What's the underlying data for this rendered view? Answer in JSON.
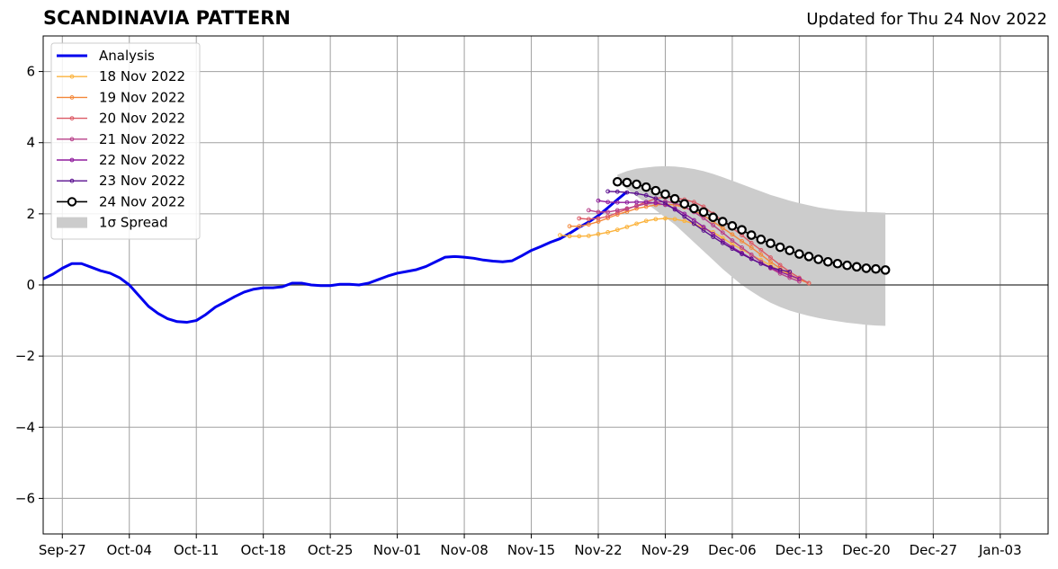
{
  "chart_data": {
    "type": "line",
    "title": "SCANDINAVIA PATTERN",
    "subtitle": "Updated for Thu 24 Nov 2022",
    "xlabel": "",
    "ylabel": "",
    "ylim": [
      -7,
      7
    ],
    "yticks": [
      -6,
      -4,
      -2,
      0,
      2,
      4,
      6
    ],
    "ytick_labels": [
      "−6",
      "−4",
      "−2",
      "0",
      "2",
      "4",
      "6"
    ],
    "xlim": [
      "2022-09-25",
      "2023-01-08"
    ],
    "xticks": [
      "2022-09-27",
      "2022-10-04",
      "2022-10-11",
      "2022-10-18",
      "2022-10-25",
      "2022-11-01",
      "2022-11-08",
      "2022-11-15",
      "2022-11-22",
      "2022-11-29",
      "2022-12-06",
      "2022-12-13",
      "2022-12-20",
      "2022-12-27",
      "2023-01-03"
    ],
    "xtick_labels": [
      "Sep-27",
      "Oct-04",
      "Oct-11",
      "Oct-18",
      "Oct-25",
      "Nov-01",
      "Nov-08",
      "Nov-15",
      "Nov-22",
      "Nov-29",
      "Dec-06",
      "Dec-13",
      "Dec-20",
      "Dec-27",
      "Jan-03"
    ],
    "grid": true,
    "legend_position": "top-left",
    "analysis": {
      "name": "Analysis",
      "color": "#0000ee",
      "start": "2022-09-25",
      "values": [
        0.17,
        0.3,
        0.47,
        0.6,
        0.6,
        0.5,
        0.4,
        0.33,
        0.2,
        0.0,
        -0.3,
        -0.6,
        -0.8,
        -0.95,
        -1.03,
        -1.05,
        -1.0,
        -0.83,
        -0.62,
        -0.48,
        -0.33,
        -0.2,
        -0.12,
        -0.08,
        -0.08,
        -0.05,
        0.05,
        0.05,
        0.0,
        -0.02,
        -0.02,
        0.02,
        0.02,
        0.0,
        0.05,
        0.15,
        0.25,
        0.33,
        0.38,
        0.43,
        0.52,
        0.65,
        0.78,
        0.8,
        0.78,
        0.75,
        0.7,
        0.67,
        0.65,
        0.68,
        0.82,
        0.97,
        1.08,
        1.2,
        1.3,
        1.45,
        1.62,
        1.77,
        1.95,
        2.17,
        2.4,
        2.62
      ]
    },
    "forecasts": [
      {
        "name": "18 Nov 2022",
        "color": "#fbb33d",
        "start": "2022-11-18",
        "values": [
          1.4,
          1.37,
          1.37,
          1.38,
          1.43,
          1.48,
          1.55,
          1.63,
          1.72,
          1.8,
          1.85,
          1.87,
          1.85,
          1.8,
          1.72,
          1.6,
          1.48,
          1.32,
          1.15,
          1.0,
          0.85,
          0.7,
          0.55,
          0.4,
          0.27,
          0.15,
          0.05
        ]
      },
      {
        "name": "19 Nov 2022",
        "color": "#f3883a",
        "start": "2022-11-19",
        "values": [
          1.65,
          1.65,
          1.7,
          1.78,
          1.88,
          1.98,
          2.06,
          2.15,
          2.2,
          2.25,
          2.27,
          2.25,
          2.18,
          2.08,
          1.95,
          1.78,
          1.6,
          1.42,
          1.23,
          1.05,
          0.85,
          0.65,
          0.47,
          0.3,
          0.15,
          0.05
        ]
      },
      {
        "name": "20 Nov 2022",
        "color": "#dc5a65",
        "start": "2022-11-20",
        "values": [
          1.87,
          1.85,
          1.87,
          1.93,
          2.03,
          2.13,
          2.23,
          2.33,
          2.43,
          2.47,
          2.45,
          2.4,
          2.33,
          2.2,
          2.0,
          1.8,
          1.6,
          1.4,
          1.18,
          0.98,
          0.77,
          0.56,
          0.37,
          0.2,
          0.05
        ]
      },
      {
        "name": "21 Nov 2022",
        "color": "#b8408a",
        "start": "2022-11-21",
        "values": [
          2.1,
          2.05,
          2.05,
          2.1,
          2.15,
          2.22,
          2.28,
          2.32,
          2.35,
          2.3,
          2.2,
          2.05,
          1.88,
          1.68,
          1.47,
          1.25,
          1.05,
          0.85,
          0.65,
          0.47,
          0.32,
          0.2,
          0.1
        ]
      },
      {
        "name": "22 Nov 2022",
        "color": "#901d9d",
        "start": "2022-11-22",
        "values": [
          2.37,
          2.33,
          2.32,
          2.32,
          2.33,
          2.33,
          2.3,
          2.25,
          2.15,
          2.0,
          1.82,
          1.63,
          1.43,
          1.24,
          1.06,
          0.9,
          0.74,
          0.6,
          0.48,
          0.37,
          0.27,
          0.17
        ]
      },
      {
        "name": "23 Nov 2022",
        "color": "#5a0f8f",
        "start": "2022-11-23",
        "values": [
          2.63,
          2.62,
          2.6,
          2.57,
          2.52,
          2.43,
          2.3,
          2.12,
          1.92,
          1.72,
          1.53,
          1.35,
          1.18,
          1.02,
          0.87,
          0.73,
          0.6,
          0.5,
          0.42,
          0.37
        ]
      }
    ],
    "latest": {
      "name": "24 Nov 2022",
      "color": "#000000",
      "fill": "#ffffff",
      "start": "2022-11-24",
      "values": [
        2.9,
        2.88,
        2.83,
        2.75,
        2.65,
        2.55,
        2.42,
        2.28,
        2.15,
        2.05,
        1.9,
        1.78,
        1.66,
        1.55,
        1.4,
        1.28,
        1.17,
        1.06,
        0.97,
        0.87,
        0.8,
        0.72,
        0.65,
        0.6,
        0.55,
        0.51,
        0.47,
        0.45,
        0.42
      ]
    },
    "spread": {
      "name": "1σ Spread",
      "color": "#cccccc",
      "start": "2022-11-24",
      "upper": [
        3.1,
        3.2,
        3.27,
        3.3,
        3.33,
        3.34,
        3.33,
        3.3,
        3.26,
        3.2,
        3.12,
        3.03,
        2.93,
        2.83,
        2.73,
        2.63,
        2.53,
        2.45,
        2.37,
        2.3,
        2.24,
        2.18,
        2.14,
        2.1,
        2.08,
        2.06,
        2.05,
        2.04,
        2.03
      ],
      "lower": [
        2.9,
        2.7,
        2.5,
        2.3,
        2.1,
        1.9,
        1.7,
        1.45,
        1.2,
        0.95,
        0.7,
        0.45,
        0.22,
        0.0,
        -0.18,
        -0.35,
        -0.5,
        -0.62,
        -0.72,
        -0.8,
        -0.87,
        -0.93,
        -0.98,
        -1.02,
        -1.06,
        -1.09,
        -1.12,
        -1.14,
        -1.15
      ]
    }
  }
}
